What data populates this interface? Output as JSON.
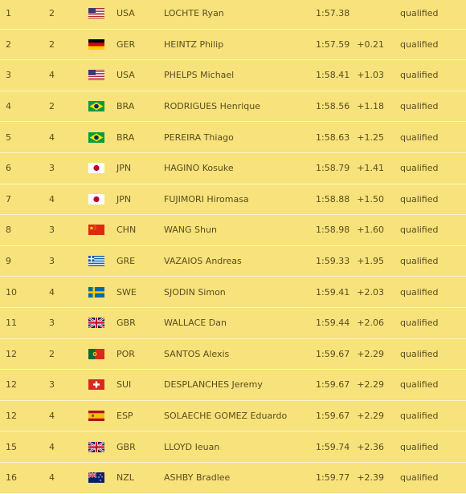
{
  "results": [
    {
      "rank": "1",
      "heat": "2",
      "noc": "USA",
      "flag": "usa-flag-icon",
      "name": "LOCHTE Ryan",
      "time": "1:57.38",
      "behind": "",
      "status": "qualified"
    },
    {
      "rank": "2",
      "heat": "2",
      "noc": "GER",
      "flag": "germany-flag-icon",
      "name": "HEINTZ Philip",
      "time": "1:57.59",
      "behind": "+0.21",
      "status": "qualified"
    },
    {
      "rank": "3",
      "heat": "4",
      "noc": "USA",
      "flag": "usa-flag-icon",
      "name": "PHELPS Michael",
      "time": "1:58.41",
      "behind": "+1.03",
      "status": "qualified"
    },
    {
      "rank": "4",
      "heat": "2",
      "noc": "BRA",
      "flag": "brazil-flag-icon",
      "name": "RODRIGUES Henrique",
      "time": "1:58.56",
      "behind": "+1.18",
      "status": "qualified"
    },
    {
      "rank": "5",
      "heat": "4",
      "noc": "BRA",
      "flag": "brazil-flag-icon",
      "name": "PEREIRA Thiago",
      "time": "1:58.63",
      "behind": "+1.25",
      "status": "qualified"
    },
    {
      "rank": "6",
      "heat": "3",
      "noc": "JPN",
      "flag": "japan-flag-icon",
      "name": "HAGINO Kosuke",
      "time": "1:58.79",
      "behind": "+1.41",
      "status": "qualified"
    },
    {
      "rank": "7",
      "heat": "4",
      "noc": "JPN",
      "flag": "japan-flag-icon",
      "name": "FUJIMORI Hiromasa",
      "time": "1:58.88",
      "behind": "+1.50",
      "status": "qualified"
    },
    {
      "rank": "8",
      "heat": "3",
      "noc": "CHN",
      "flag": "china-flag-icon",
      "name": "WANG Shun",
      "time": "1:58.98",
      "behind": "+1.60",
      "status": "qualified"
    },
    {
      "rank": "9",
      "heat": "3",
      "noc": "GRE",
      "flag": "greece-flag-icon",
      "name": "VAZAIOS Andreas",
      "time": "1:59.33",
      "behind": "+1.95",
      "status": "qualified"
    },
    {
      "rank": "10",
      "heat": "4",
      "noc": "SWE",
      "flag": "sweden-flag-icon",
      "name": "SJODIN Simon",
      "time": "1:59.41",
      "behind": "+2.03",
      "status": "qualified"
    },
    {
      "rank": "11",
      "heat": "3",
      "noc": "GBR",
      "flag": "uk-flag-icon",
      "name": "WALLACE Dan",
      "time": "1:59.44",
      "behind": "+2.06",
      "status": "qualified"
    },
    {
      "rank": "12",
      "heat": "2",
      "noc": "POR",
      "flag": "portugal-flag-icon",
      "name": "SANTOS Alexis",
      "time": "1:59.67",
      "behind": "+2.29",
      "status": "qualified"
    },
    {
      "rank": "12",
      "heat": "3",
      "noc": "SUI",
      "flag": "switzerland-flag-icon",
      "name": "DESPLANCHES Jeremy",
      "time": "1:59.67",
      "behind": "+2.29",
      "status": "qualified"
    },
    {
      "rank": "12",
      "heat": "4",
      "noc": "ESP",
      "flag": "spain-flag-icon",
      "name": "SOLAECHE GOMEZ Eduardo",
      "time": "1:59.67",
      "behind": "+2.29",
      "status": "qualified"
    },
    {
      "rank": "15",
      "heat": "4",
      "noc": "GBR",
      "flag": "uk-flag-icon",
      "name": "LLOYD Ieuan",
      "time": "1:59.74",
      "behind": "+2.36",
      "status": "qualified"
    },
    {
      "rank": "16",
      "heat": "4",
      "noc": "NZL",
      "flag": "new-zealand-flag-icon",
      "name": "ASHBY Bradlee",
      "time": "1:59.77",
      "behind": "+2.39",
      "status": "qualified"
    }
  ],
  "colors": {
    "background": "#f7e27b",
    "row_separator": "#fff7c9",
    "text": "#5a4e1e"
  }
}
